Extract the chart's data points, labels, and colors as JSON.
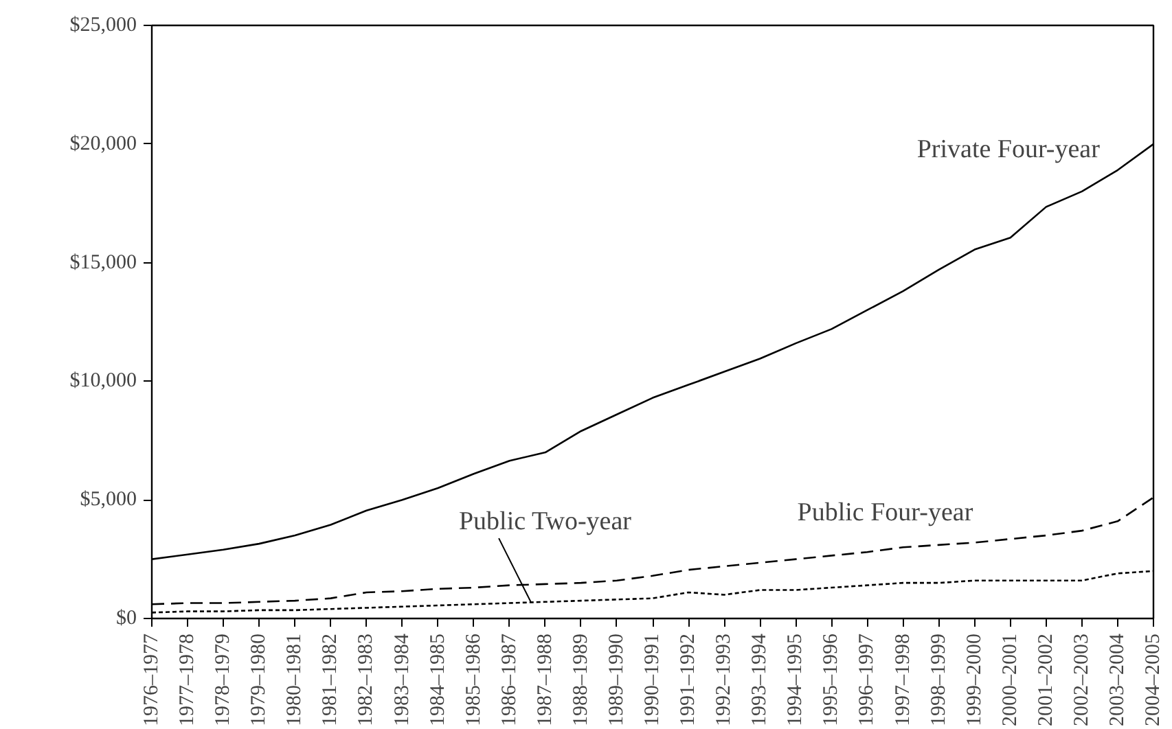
{
  "chart_data": {
    "type": "line",
    "categories": [
      "1976–1977",
      "1977–1978",
      "1978–1979",
      "1979–1980",
      "1980–1981",
      "1981–1982",
      "1982–1983",
      "1983–1984",
      "1984–1985",
      "1985–1986",
      "1986–1987",
      "1987–1988",
      "1988–1989",
      "1989–1990",
      "1990–1991",
      "1991–1992",
      "1992–1993",
      "1993–1994",
      "1994–1995",
      "1995–1996",
      "1996–1997",
      "1997–1998",
      "1998–1999",
      "1999–2000",
      "2000–2001",
      "2001–2002",
      "2002–2003",
      "2003–2004",
      "2004–2005"
    ],
    "series": [
      {
        "name": "Private Four-year",
        "color": "#000000",
        "line_style": "solid",
        "values": [
          2500,
          2700,
          2900,
          3150,
          3500,
          3950,
          4550,
          5000,
          5500,
          6100,
          6650,
          7000,
          7900,
          8600,
          9300,
          9850,
          10400,
          10950,
          11600,
          12200,
          13000,
          13800,
          14700,
          15550,
          16050,
          17350,
          18000,
          18900,
          20000
        ]
      },
      {
        "name": "Public Four-year",
        "color": "#000000",
        "line_style": "dashed",
        "values": [
          600,
          650,
          650,
          700,
          750,
          850,
          1100,
          1150,
          1250,
          1300,
          1400,
          1450,
          1500,
          1600,
          1800,
          2050,
          2200,
          2350,
          2500,
          2650,
          2800,
          3000,
          3100,
          3200,
          3350,
          3500,
          3700,
          4100,
          5100
        ]
      },
      {
        "name": "Public Two-year",
        "color": "#000000",
        "line_style": "dotted",
        "values": [
          250,
          300,
          300,
          350,
          350,
          400,
          450,
          500,
          550,
          600,
          650,
          700,
          750,
          800,
          850,
          1100,
          1000,
          1200,
          1200,
          1300,
          1400,
          1500,
          1500,
          1600,
          1600,
          1600,
          1600,
          1900,
          2000
        ]
      }
    ],
    "ylim": [
      0,
      25000
    ],
    "yticks": [
      {
        "value": 0,
        "label": "$0"
      },
      {
        "value": 5000,
        "label": "$5,000"
      },
      {
        "value": 10000,
        "label": "$10,000"
      },
      {
        "value": 15000,
        "label": "$15,000"
      },
      {
        "value": 20000,
        "label": "$20,000"
      },
      {
        "value": 25000,
        "label": "$25,000"
      }
    ],
    "grid": false
  }
}
